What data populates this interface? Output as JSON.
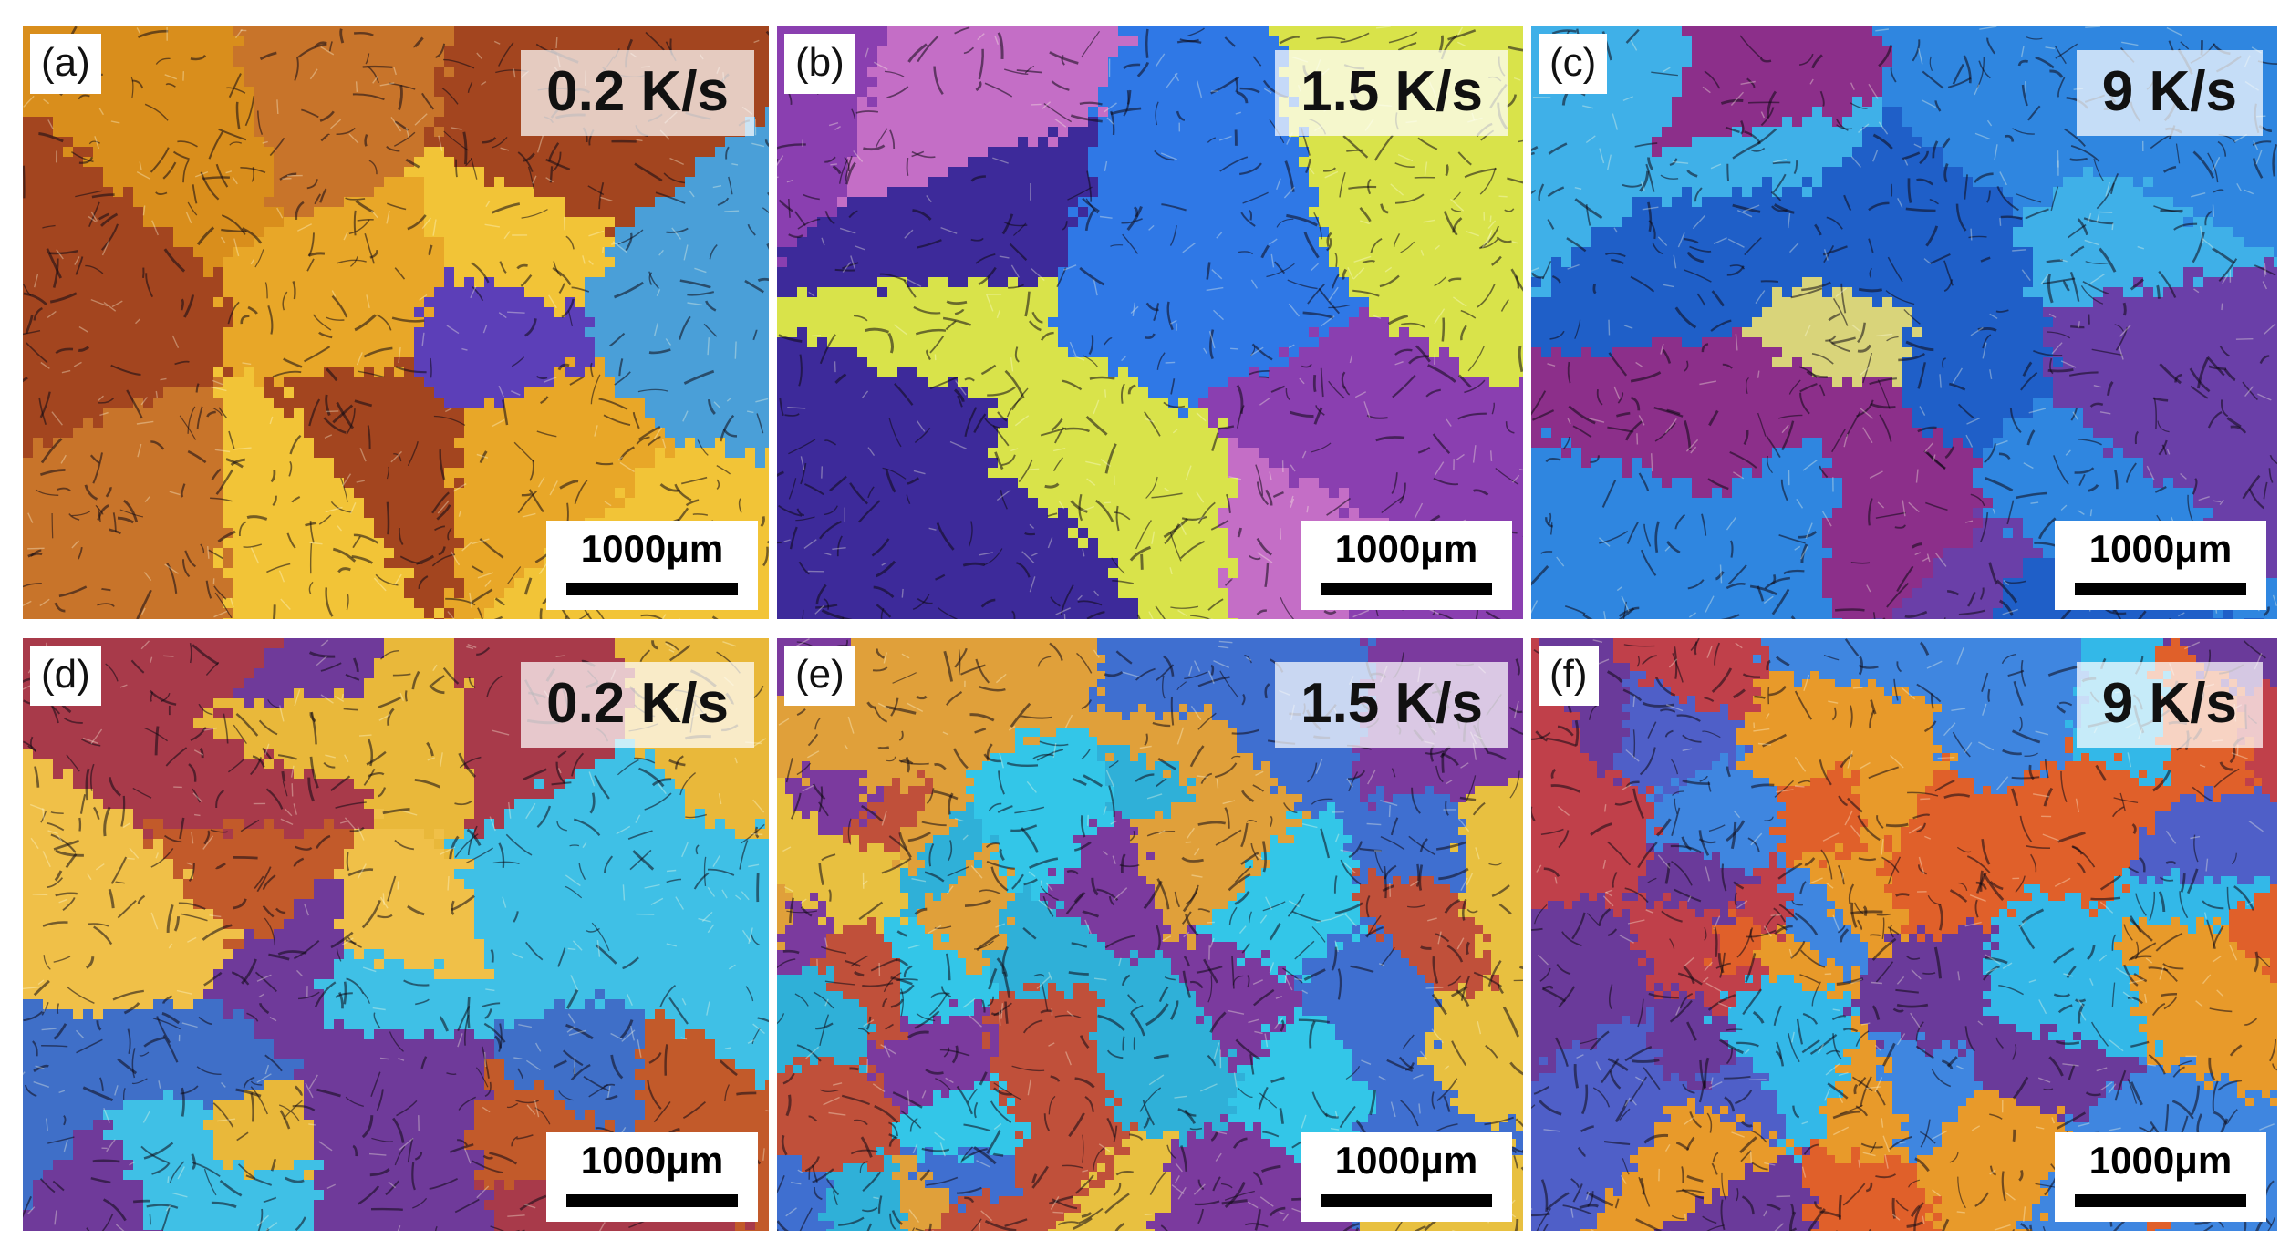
{
  "panels": [
    {
      "label": "(a)",
      "rate": "0.2 K/s",
      "scale": "1000μm",
      "palette": [
        "#e8a728",
        "#d98e1c",
        "#f2c437",
        "#4a9fd8",
        "#5c3fb8",
        "#a3451f",
        "#c8742a"
      ]
    },
    {
      "label": "(b)",
      "rate": "1.5 K/s",
      "scale": "1000μm",
      "palette": [
        "#5a2dc8",
        "#2f78e6",
        "#d9e34a",
        "#c46ec6",
        "#8a3fb0",
        "#c9a07a",
        "#3d2a9a"
      ]
    },
    {
      "label": "(c)",
      "rate": "9 K/s",
      "scale": "1000μm",
      "palette": [
        "#2f86e0",
        "#d9d47a",
        "#6a3fa8",
        "#3fb0e8",
        "#b9b86a",
        "#8c2f8a",
        "#1f5fc8"
      ]
    },
    {
      "label": "(d)",
      "rate": "0.2 K/s",
      "scale": "1000μm",
      "palette": [
        "#c25a2a",
        "#e9b83a",
        "#6f3a9a",
        "#3fc0e6",
        "#3f6fc8",
        "#a83a4a",
        "#f0c048"
      ]
    },
    {
      "label": "(e)",
      "rate": "1.5 K/s",
      "scale": "1000μm",
      "palette": [
        "#33c6e8",
        "#e8c040",
        "#7b3a9e",
        "#c0503a",
        "#3f6fd0",
        "#2fb0d8",
        "#e0a03a"
      ]
    },
    {
      "label": "(f)",
      "rate": "9 K/s",
      "scale": "1000μm",
      "palette": [
        "#3f86e0",
        "#e89a2a",
        "#e0602a",
        "#6a3a9a",
        "#33b8e8",
        "#c0404a",
        "#4f5fc8"
      ]
    }
  ]
}
